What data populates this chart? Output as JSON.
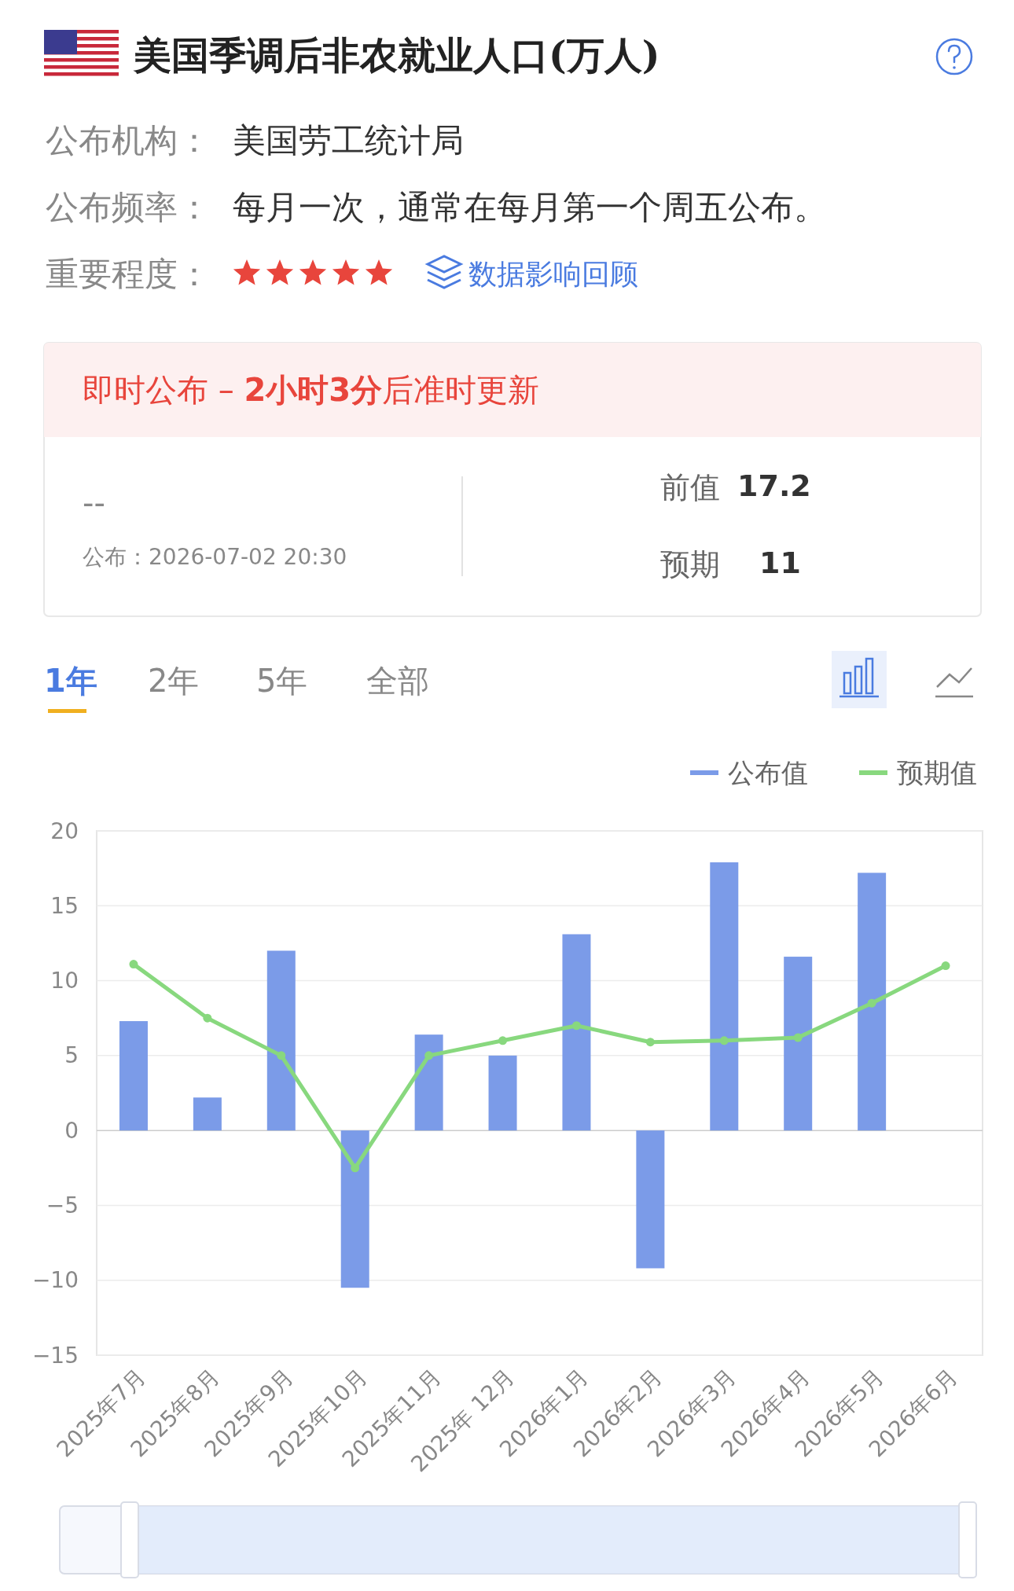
{
  "chart_data": {
    "type": "bar",
    "title": "美国季调后非农就业人口(万人)",
    "annotations": [
      "公布机构：",
      "美国劳工统计局",
      "公布频率：",
      "每月一次，通常在每月第一个周五公布。",
      "重要程度：",
      "数据影响回顾",
      "即时公布 – ",
      "2小时3分",
      "后准时更新",
      "--",
      "公布：2026-07-02 20:30",
      "前值",
      "17.2",
      "预期",
      "11",
      "1年",
      "2年",
      "5年",
      "全部"
    ],
    "categories": [
      "2025年7月",
      "2025年8月",
      "2025年9月",
      "2025年10月",
      "2025年11月",
      "2025年 12月",
      "2026年1月",
      "2026年2月",
      "2026年3月",
      "2026年4月",
      "2026年5月",
      "2026年6月"
    ],
    "series": [
      {
        "name": "公布值",
        "color": "#7b9be8",
        "values": [
          7.3,
          2.2,
          12.0,
          -10.5,
          6.4,
          5.0,
          13.1,
          -9.2,
          17.9,
          11.6,
          17.2,
          null
        ]
      },
      {
        "name": "预期值",
        "type": "line",
        "color": "#88d87e",
        "marker": "circle",
        "values": [
          11.1,
          7.5,
          5.0,
          -2.5,
          5.0,
          6.0,
          7.0,
          5.9,
          6.0,
          6.2,
          8.5,
          11.0
        ]
      }
    ],
    "ylim": [
      -15,
      20
    ],
    "yticks": [
      -15,
      -10,
      -5,
      0,
      5,
      10,
      15,
      20
    ],
    "grid": "y",
    "legend": "top right"
  }
}
